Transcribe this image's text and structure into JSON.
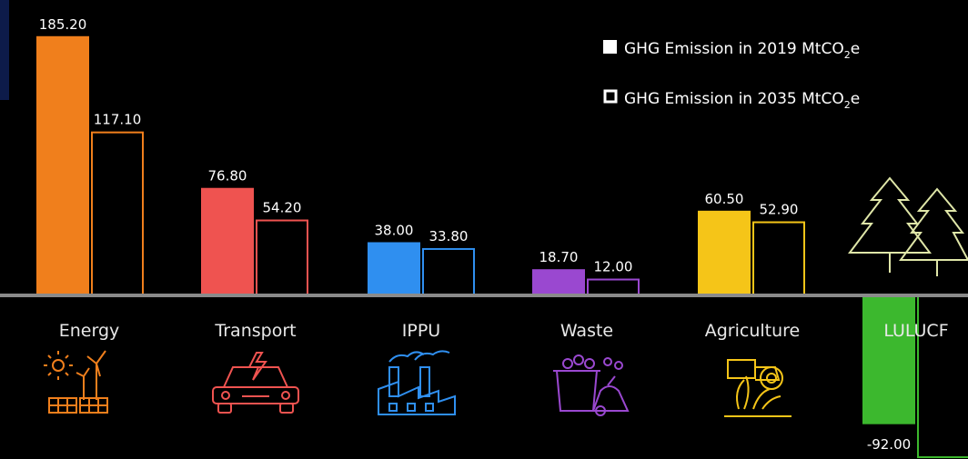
{
  "chart_data": {
    "type": "bar",
    "categories": [
      "Energy",
      "Transport",
      "IPPU",
      "Waste",
      "Agriculture",
      "LULUCF"
    ],
    "series": [
      {
        "name": "GHG Emission in 2019 MtCO2e",
        "style": "filled",
        "values": [
          185.2,
          76.8,
          38.0,
          18.7,
          60.5,
          -92.0
        ],
        "labels": [
          "185.20",
          "76.80",
          "38.00",
          "18.70",
          "60.50",
          "-92.00"
        ]
      },
      {
        "name": "GHG Emission in 2035 MtCO2e",
        "style": "outline",
        "values": [
          117.1,
          54.2,
          33.8,
          12.0,
          52.9,
          -120.0
        ],
        "labels": [
          "117.10",
          "54.20",
          "33.80",
          "12.00",
          "52.90",
          ""
        ]
      }
    ],
    "category_colors": [
      "#f07f1c",
      "#ef5350",
      "#2f8ff0",
      "#9a48d0",
      "#f5c518",
      "#3cb82e"
    ],
    "ylim": [
      -120,
      190
    ],
    "legend_position": "top-right"
  },
  "legend": {
    "items": [
      {
        "prefix": "GHG Emission in 2019  MtCO",
        "sub": "2",
        "suffix": "e"
      },
      {
        "prefix": "GHG Emission in 2035  MtCO",
        "sub": "2",
        "suffix": "e"
      }
    ]
  },
  "icons": [
    "solar-wind-icon",
    "car-icon",
    "factory-icon",
    "waste-bin-icon",
    "tractor-icon",
    "trees-icon"
  ]
}
